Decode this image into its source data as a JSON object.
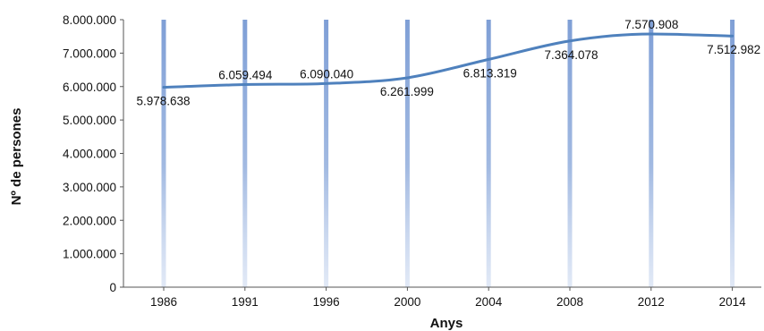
{
  "chart_data": {
    "type": "line",
    "title": "",
    "xlabel": "Anys",
    "ylabel": "Nº de persones",
    "categories": [
      "1986",
      "1991",
      "1996",
      "2000",
      "2004",
      "2008",
      "2012",
      "2014"
    ],
    "series": [
      {
        "values": [
          5978638,
          6059494,
          6090040,
          6261999,
          6813319,
          7364078,
          7570908,
          7512982
        ],
        "data_labels": [
          "5.978.638",
          "6.059.494",
          "6.090.040",
          "6.261.999",
          "6.813.319",
          "7.364.078",
          "7.570.908",
          "7.512.982"
        ]
      }
    ],
    "ylim": [
      0,
      8000000
    ],
    "y_ticks": [
      0,
      1000000,
      2000000,
      3000000,
      4000000,
      5000000,
      6000000,
      7000000,
      8000000
    ],
    "y_tick_labels": [
      "0",
      "1.000.000",
      "2.000.000",
      "3.000.000",
      "4.000.000",
      "5.000.000",
      "6.000.000",
      "7.000.000",
      "8.000.000"
    ],
    "grid": "vertical bars at categories",
    "legend": "none",
    "colors": {
      "line": "#4f81bd",
      "bars": "#8eaadb",
      "axis": "#555555"
    }
  }
}
